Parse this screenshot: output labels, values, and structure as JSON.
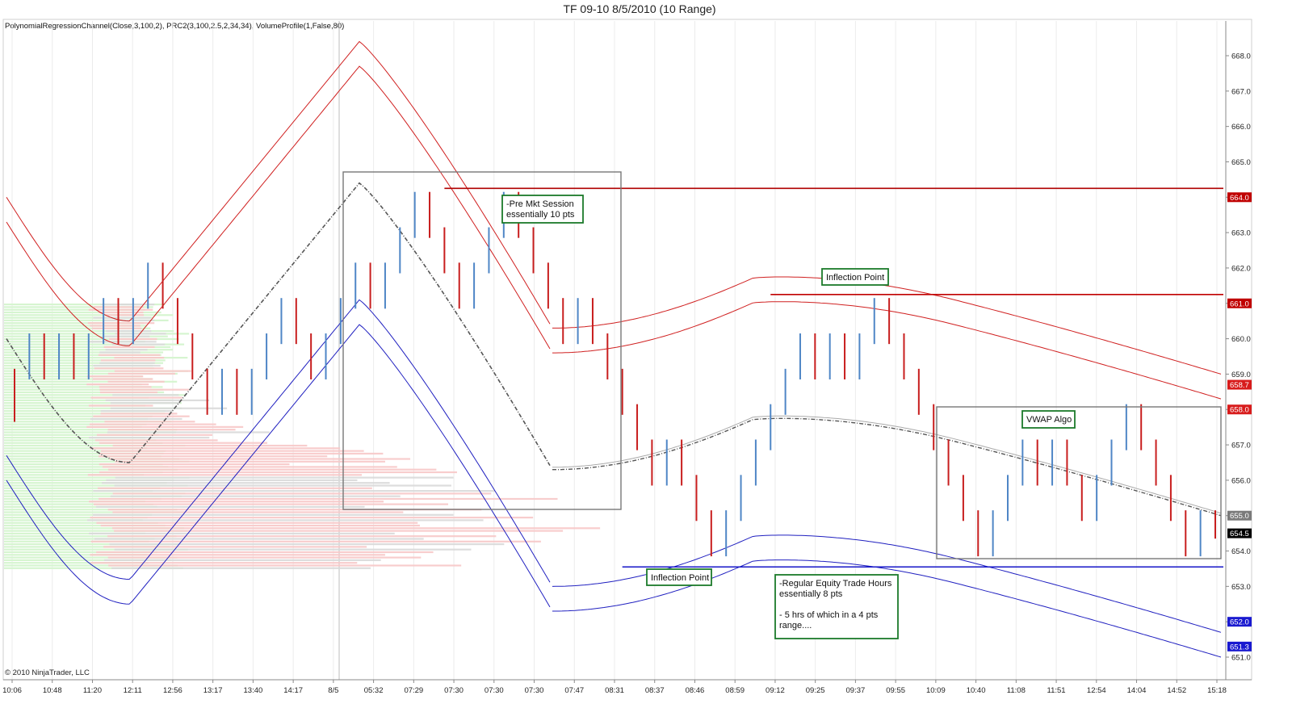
{
  "chart_data": {
    "type": "bar",
    "subtype": "range-bar OHLC with indicators and volume profile",
    "title": "TF 09-10  8/5/2010 (10 Range)",
    "indicators_label": "PolynomialRegressionChannel(Close,3,100,2),  PRC2(3,100,2.5,2,34,34),  VolumeProfile(1,False,80)",
    "copyright": "© 2010 NinjaTrader, LLC",
    "y_axis": {
      "position": "right",
      "min": 650.8,
      "max": 668.8,
      "ticks": [
        "651.0",
        "652.0",
        "653.0",
        "654.0",
        "655.0",
        "656.0",
        "657.0",
        "658.0",
        "659.0",
        "660.0",
        "661.0",
        "662.0",
        "663.0",
        "664.0",
        "665.0",
        "666.0",
        "667.0",
        "668.0"
      ]
    },
    "x_axis": {
      "tick_labels": [
        "10:06",
        "10:48",
        "11:20",
        "12:11",
        "12:56",
        "13:17",
        "13:40",
        "14:17",
        "8/5",
        "05:32",
        "07:29",
        "07:30",
        "07:30",
        "07:30",
        "07:47",
        "08:31",
        "08:37",
        "08:46",
        "08:59",
        "09:12",
        "09:25",
        "09:37",
        "09:55",
        "10:09",
        "10:40",
        "11:08",
        "11:51",
        "12:54",
        "14:04",
        "14:52",
        "15:18"
      ]
    },
    "grid": "vertical",
    "session_divider_label": "8/5",
    "price_markers": [
      {
        "value": "664.0",
        "color": "#c00000"
      },
      {
        "value": "661.0",
        "color": "#c00000"
      },
      {
        "value": "658.7",
        "color": "#d81c1c"
      },
      {
        "value": "658.0",
        "color": "#d81c1c"
      },
      {
        "value": "655.0",
        "color": "#7a7a7a"
      },
      {
        "value": "654.5",
        "color": "#000000"
      },
      {
        "value": "652.0",
        "color": "#1a1ad0"
      },
      {
        "value": "651.3",
        "color": "#1a1ad0"
      }
    ],
    "horizontal_lines": [
      {
        "value": 664.25,
        "from_index": 29,
        "color": "#b00000"
      },
      {
        "value": 661.25,
        "from_index": 51,
        "color": "#c00000"
      },
      {
        "value": 653.55,
        "from_index": 41,
        "color": "#1515c8"
      }
    ],
    "annotations": [
      "-Pre Mkt Session\n essentially 10 pts",
      "Inflection Point",
      "Inflection Point",
      "VWAP Algo",
      "-Regular Equity Trade Hours\nessentially 8 pts\n\n- 5 hrs of which in a 4 pts\nrange...."
    ],
    "bar_colors": {
      "up": "#4f86c6",
      "down": "#c81e1e"
    },
    "series": [
      {
        "name": "Price bars (open, close)",
        "data": [
          [
            659.0,
            657.8
          ],
          [
            659.0,
            660.0
          ],
          [
            660.0,
            659.0
          ],
          [
            659.0,
            660.0
          ],
          [
            660.0,
            659.0
          ],
          [
            659.0,
            660.0
          ],
          [
            660.0,
            661.0
          ],
          [
            661.0,
            660.0
          ],
          [
            660.0,
            661.0
          ],
          [
            661.0,
            662.0
          ],
          [
            662.0,
            661.0
          ],
          [
            661.0,
            660.0
          ],
          [
            660.0,
            659.0
          ],
          [
            659.0,
            658.0
          ],
          [
            658.0,
            659.0
          ],
          [
            659.0,
            658.0
          ],
          [
            658.0,
            659.0
          ],
          [
            659.0,
            660.0
          ],
          [
            660.0,
            661.0
          ],
          [
            661.0,
            660.0
          ],
          [
            660.0,
            659.0
          ],
          [
            659.0,
            660.0
          ],
          [
            660.0,
            661.0
          ],
          [
            661.0,
            662.0
          ],
          [
            662.0,
            661.0
          ],
          [
            661.0,
            662.0
          ],
          [
            662.0,
            663.0
          ],
          [
            663.0,
            664.0
          ],
          [
            664.0,
            663.0
          ],
          [
            663.0,
            662.0
          ],
          [
            662.0,
            661.0
          ],
          [
            661.0,
            662.0
          ],
          [
            662.0,
            663.0
          ],
          [
            663.0,
            664.0
          ],
          [
            664.0,
            663.0
          ],
          [
            663.0,
            662.0
          ],
          [
            662.0,
            661.0
          ],
          [
            661.0,
            660.0
          ],
          [
            660.0,
            661.0
          ],
          [
            661.0,
            660.0
          ],
          [
            660.0,
            659.0
          ],
          [
            659.0,
            658.0
          ],
          [
            658.0,
            657.0
          ],
          [
            657.0,
            656.0
          ],
          [
            656.0,
            657.0
          ],
          [
            657.0,
            656.0
          ],
          [
            656.0,
            655.0
          ],
          [
            655.0,
            654.0
          ],
          [
            654.0,
            655.0
          ],
          [
            655.0,
            656.0
          ],
          [
            656.0,
            657.0
          ],
          [
            657.0,
            658.0
          ],
          [
            658.0,
            659.0
          ],
          [
            659.0,
            660.0
          ],
          [
            660.0,
            659.0
          ],
          [
            659.0,
            660.0
          ],
          [
            660.0,
            659.0
          ],
          [
            659.0,
            660.0
          ],
          [
            660.0,
            661.0
          ],
          [
            661.0,
            660.0
          ],
          [
            660.0,
            659.0
          ],
          [
            659.0,
            658.0
          ],
          [
            658.0,
            657.0
          ],
          [
            657.0,
            656.0
          ],
          [
            656.0,
            655.0
          ],
          [
            655.0,
            654.0
          ],
          [
            654.0,
            655.0
          ],
          [
            655.0,
            656.0
          ],
          [
            656.0,
            657.0
          ],
          [
            657.0,
            656.0
          ],
          [
            656.0,
            657.0
          ],
          [
            657.0,
            656.0
          ],
          [
            656.0,
            655.0
          ],
          [
            655.0,
            656.0
          ],
          [
            656.0,
            657.0
          ],
          [
            657.0,
            658.0
          ],
          [
            658.0,
            657.0
          ],
          [
            657.0,
            656.0
          ],
          [
            656.0,
            655.0
          ],
          [
            655.0,
            654.0
          ],
          [
            654.0,
            655.0
          ],
          [
            655.0,
            654.5
          ]
        ]
      },
      {
        "name": "Regression mid line"
      },
      {
        "name": "Upper channel (red)"
      },
      {
        "name": "Lower channel (blue)"
      },
      {
        "name": "Volume profile"
      }
    ]
  }
}
